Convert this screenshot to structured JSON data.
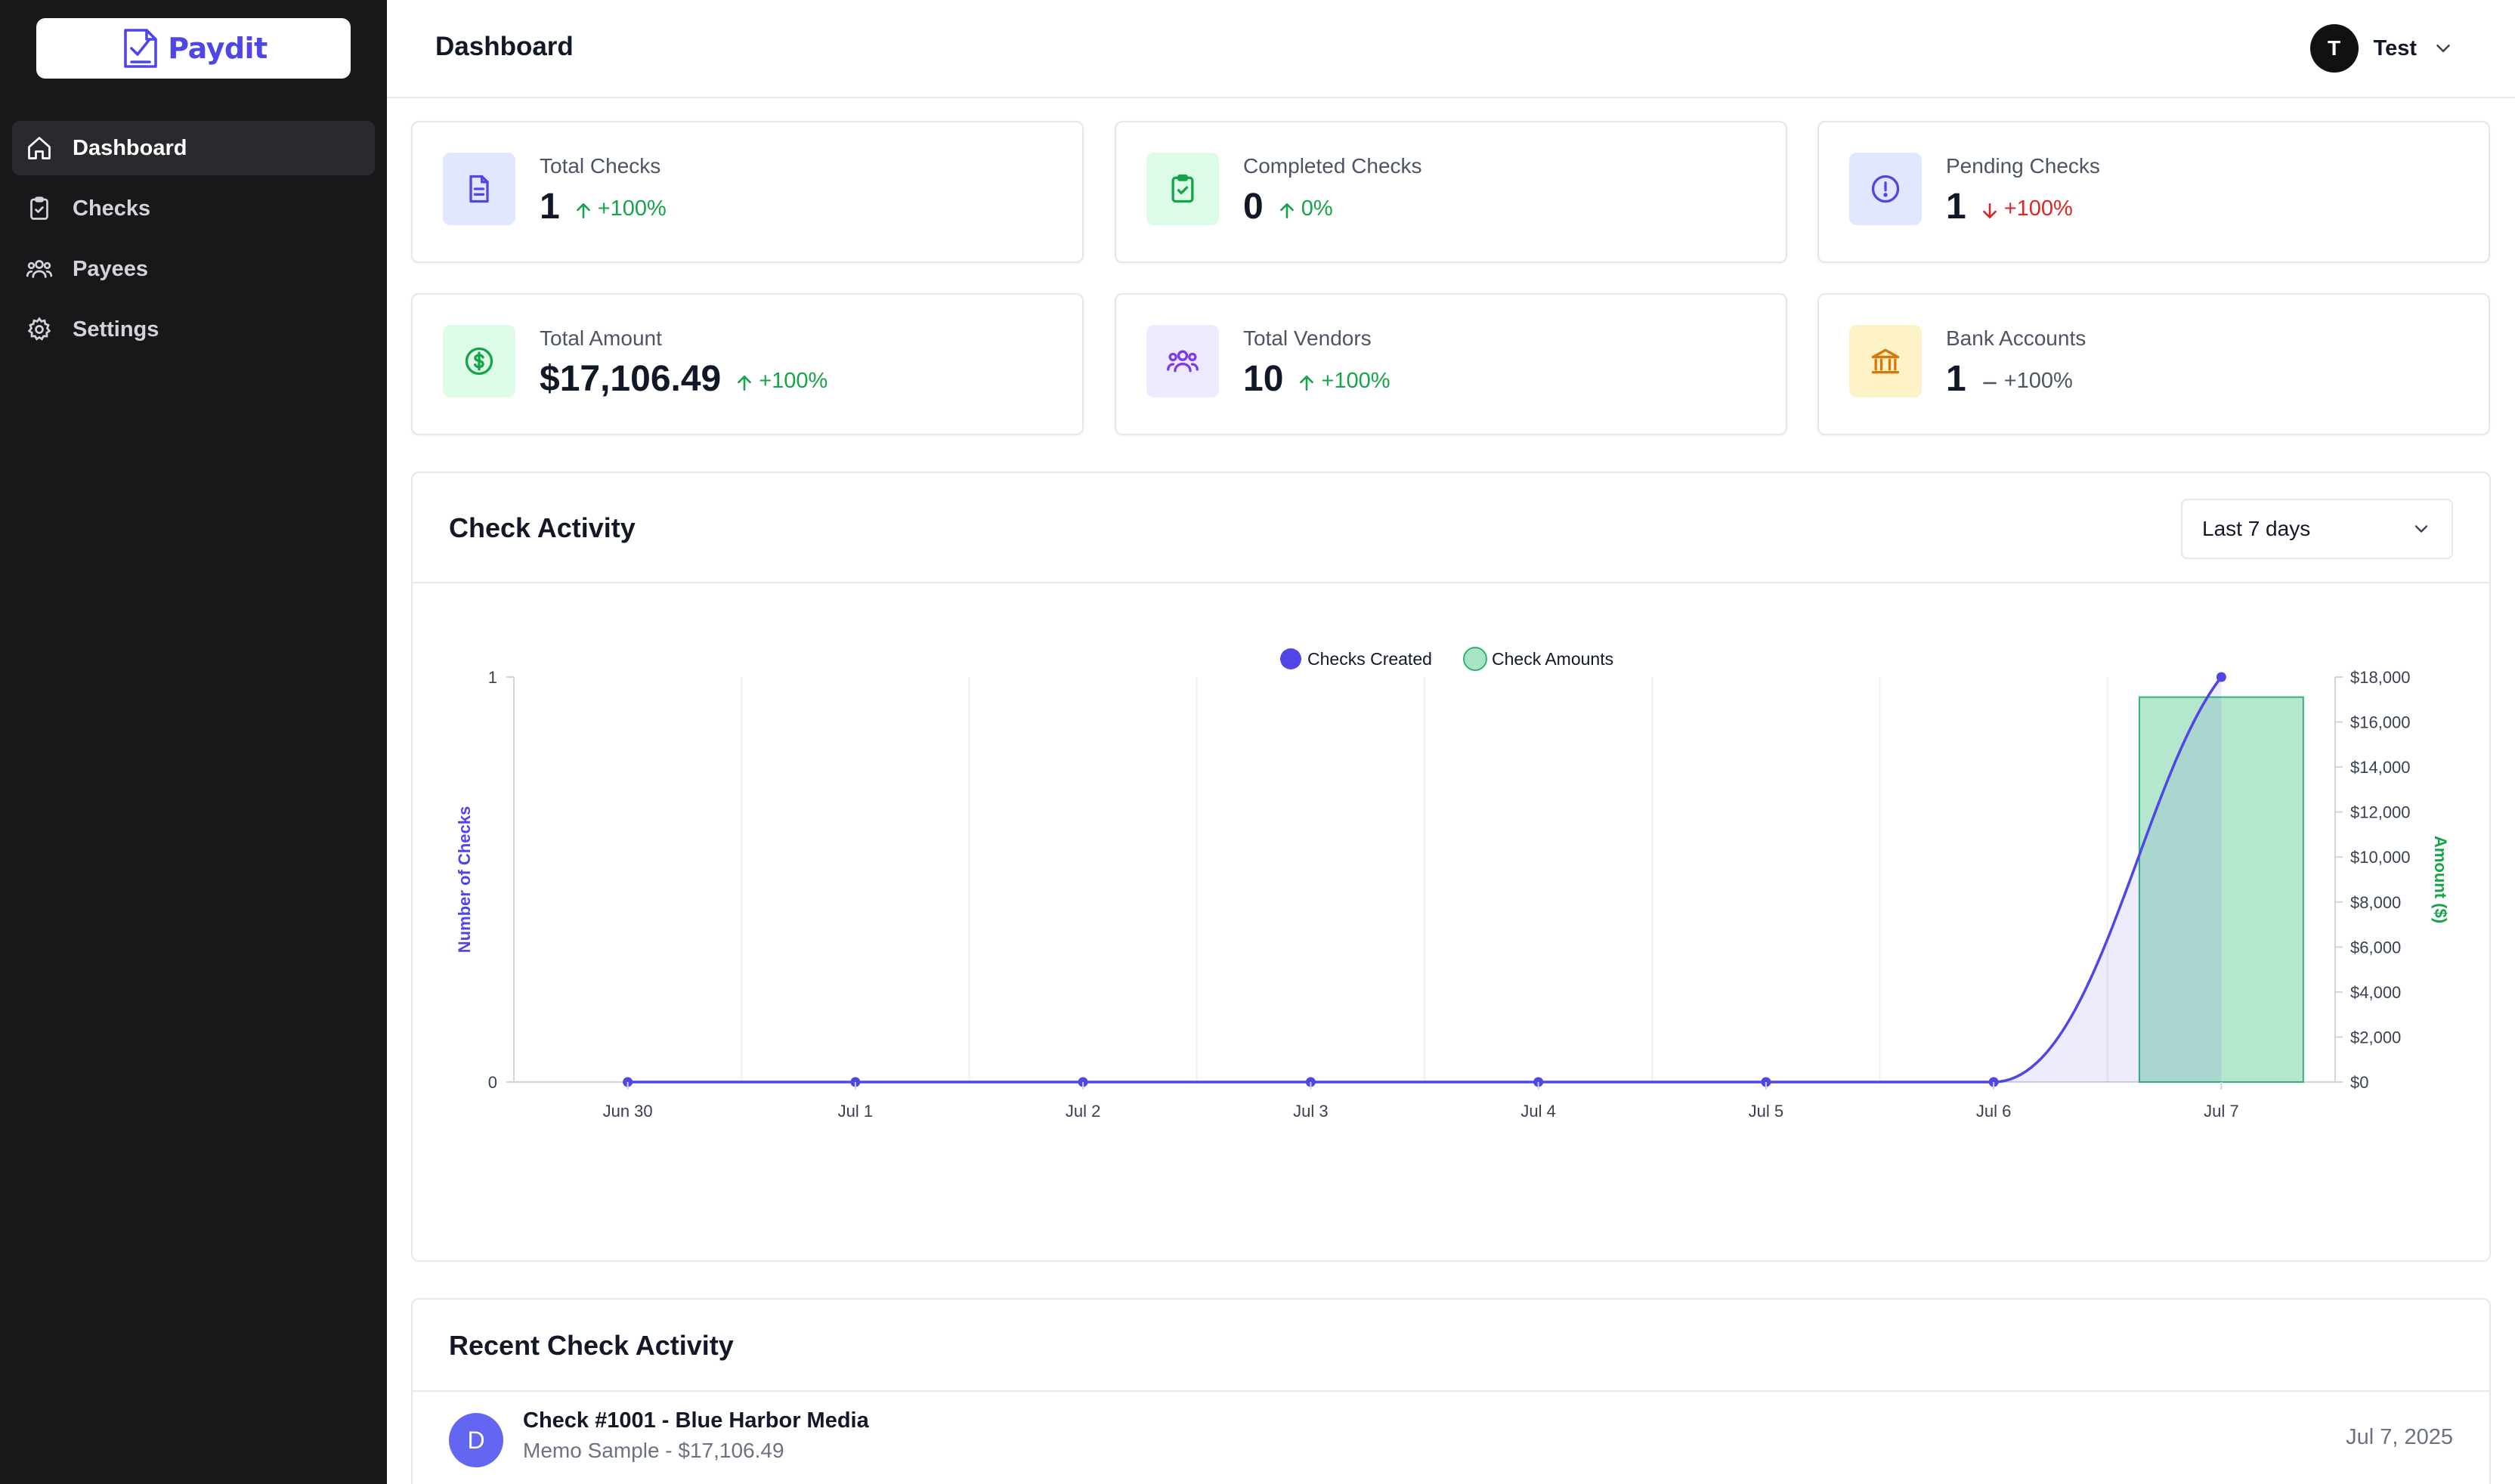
{
  "brand": {
    "name": "Paydit",
    "logo_icon": "check-document-icon"
  },
  "sidebar": {
    "items": [
      {
        "label": "Dashboard",
        "icon": "home-icon",
        "active": true
      },
      {
        "label": "Checks",
        "icon": "clipboard-check-icon",
        "active": false
      },
      {
        "label": "Payees",
        "icon": "users-icon",
        "active": false
      },
      {
        "label": "Settings",
        "icon": "gear-icon",
        "active": false
      }
    ]
  },
  "header": {
    "title": "Dashboard",
    "user": {
      "initial": "T",
      "name": "Test"
    }
  },
  "stats": [
    {
      "label": "Total Checks",
      "value": "1",
      "trend": "+100%",
      "direction": "up",
      "icon": "document-icon",
      "tile_color": "#e0e7ff",
      "icon_color": "#4f46e5"
    },
    {
      "label": "Completed Checks",
      "value": "0",
      "trend": "0%",
      "direction": "up",
      "icon": "clipboard-check-icon",
      "tile_color": "#dcfce7",
      "icon_color": "#16a34a"
    },
    {
      "label": "Pending Checks",
      "value": "1",
      "trend": "+100%",
      "direction": "down",
      "icon": "exclamation-circle-icon",
      "tile_color": "#e0e7ff",
      "icon_color": "#4f46e5"
    },
    {
      "label": "Total Amount",
      "value": "$17,106.49",
      "trend": "+100%",
      "direction": "up",
      "icon": "dollar-circle-icon",
      "tile_color": "#dcfce7",
      "icon_color": "#16a34a"
    },
    {
      "label": "Total Vendors",
      "value": "10",
      "trend": "+100%",
      "direction": "up",
      "icon": "users-icon",
      "tile_color": "#ede9fe",
      "icon_color": "#7c3aed"
    },
    {
      "label": "Bank Accounts",
      "value": "1",
      "trend": "+100%",
      "direction": "flat",
      "icon": "bank-icon",
      "tile_color": "#fef3c7",
      "icon_color": "#d97706"
    }
  ],
  "activity_panel": {
    "title": "Check Activity",
    "range": {
      "selected": "Last 7 days"
    }
  },
  "chart_data": {
    "type": "bar",
    "title": "",
    "xlabel": "",
    "categories": [
      "Jun 30",
      "Jul 1",
      "Jul 2",
      "Jul 3",
      "Jul 4",
      "Jul 5",
      "Jul 6",
      "Jul 7"
    ],
    "series": [
      {
        "name": "Checks Created",
        "type": "line",
        "axis": "left",
        "color": "#4f46e5",
        "values": [
          0,
          0,
          0,
          0,
          0,
          0,
          0,
          1
        ]
      },
      {
        "name": "Check Amounts",
        "type": "bar",
        "axis": "right",
        "color": "#a7e3c4",
        "values": [
          0,
          0,
          0,
          0,
          0,
          0,
          0,
          17106.49
        ]
      }
    ],
    "y_left": {
      "label": "Number of Checks",
      "range": [
        0,
        1
      ],
      "ticks": [
        "0",
        "1"
      ]
    },
    "y_right": {
      "label": "Amount ($)",
      "range": [
        0,
        18000
      ],
      "ticks": [
        "$0",
        "$2,000",
        "$4,000",
        "$6,000",
        "$8,000",
        "$10,000",
        "$12,000",
        "$14,000",
        "$16,000",
        "$18,000"
      ]
    },
    "legend": "top-center",
    "grid": "vertical"
  },
  "recent": {
    "title": "Recent Check Activity",
    "items": [
      {
        "initial": "D",
        "title": "Check #1001 - Blue Harbor Media",
        "subtitle": "Memo Sample - $17,106.49",
        "date": "Jul 7, 2025"
      }
    ]
  }
}
